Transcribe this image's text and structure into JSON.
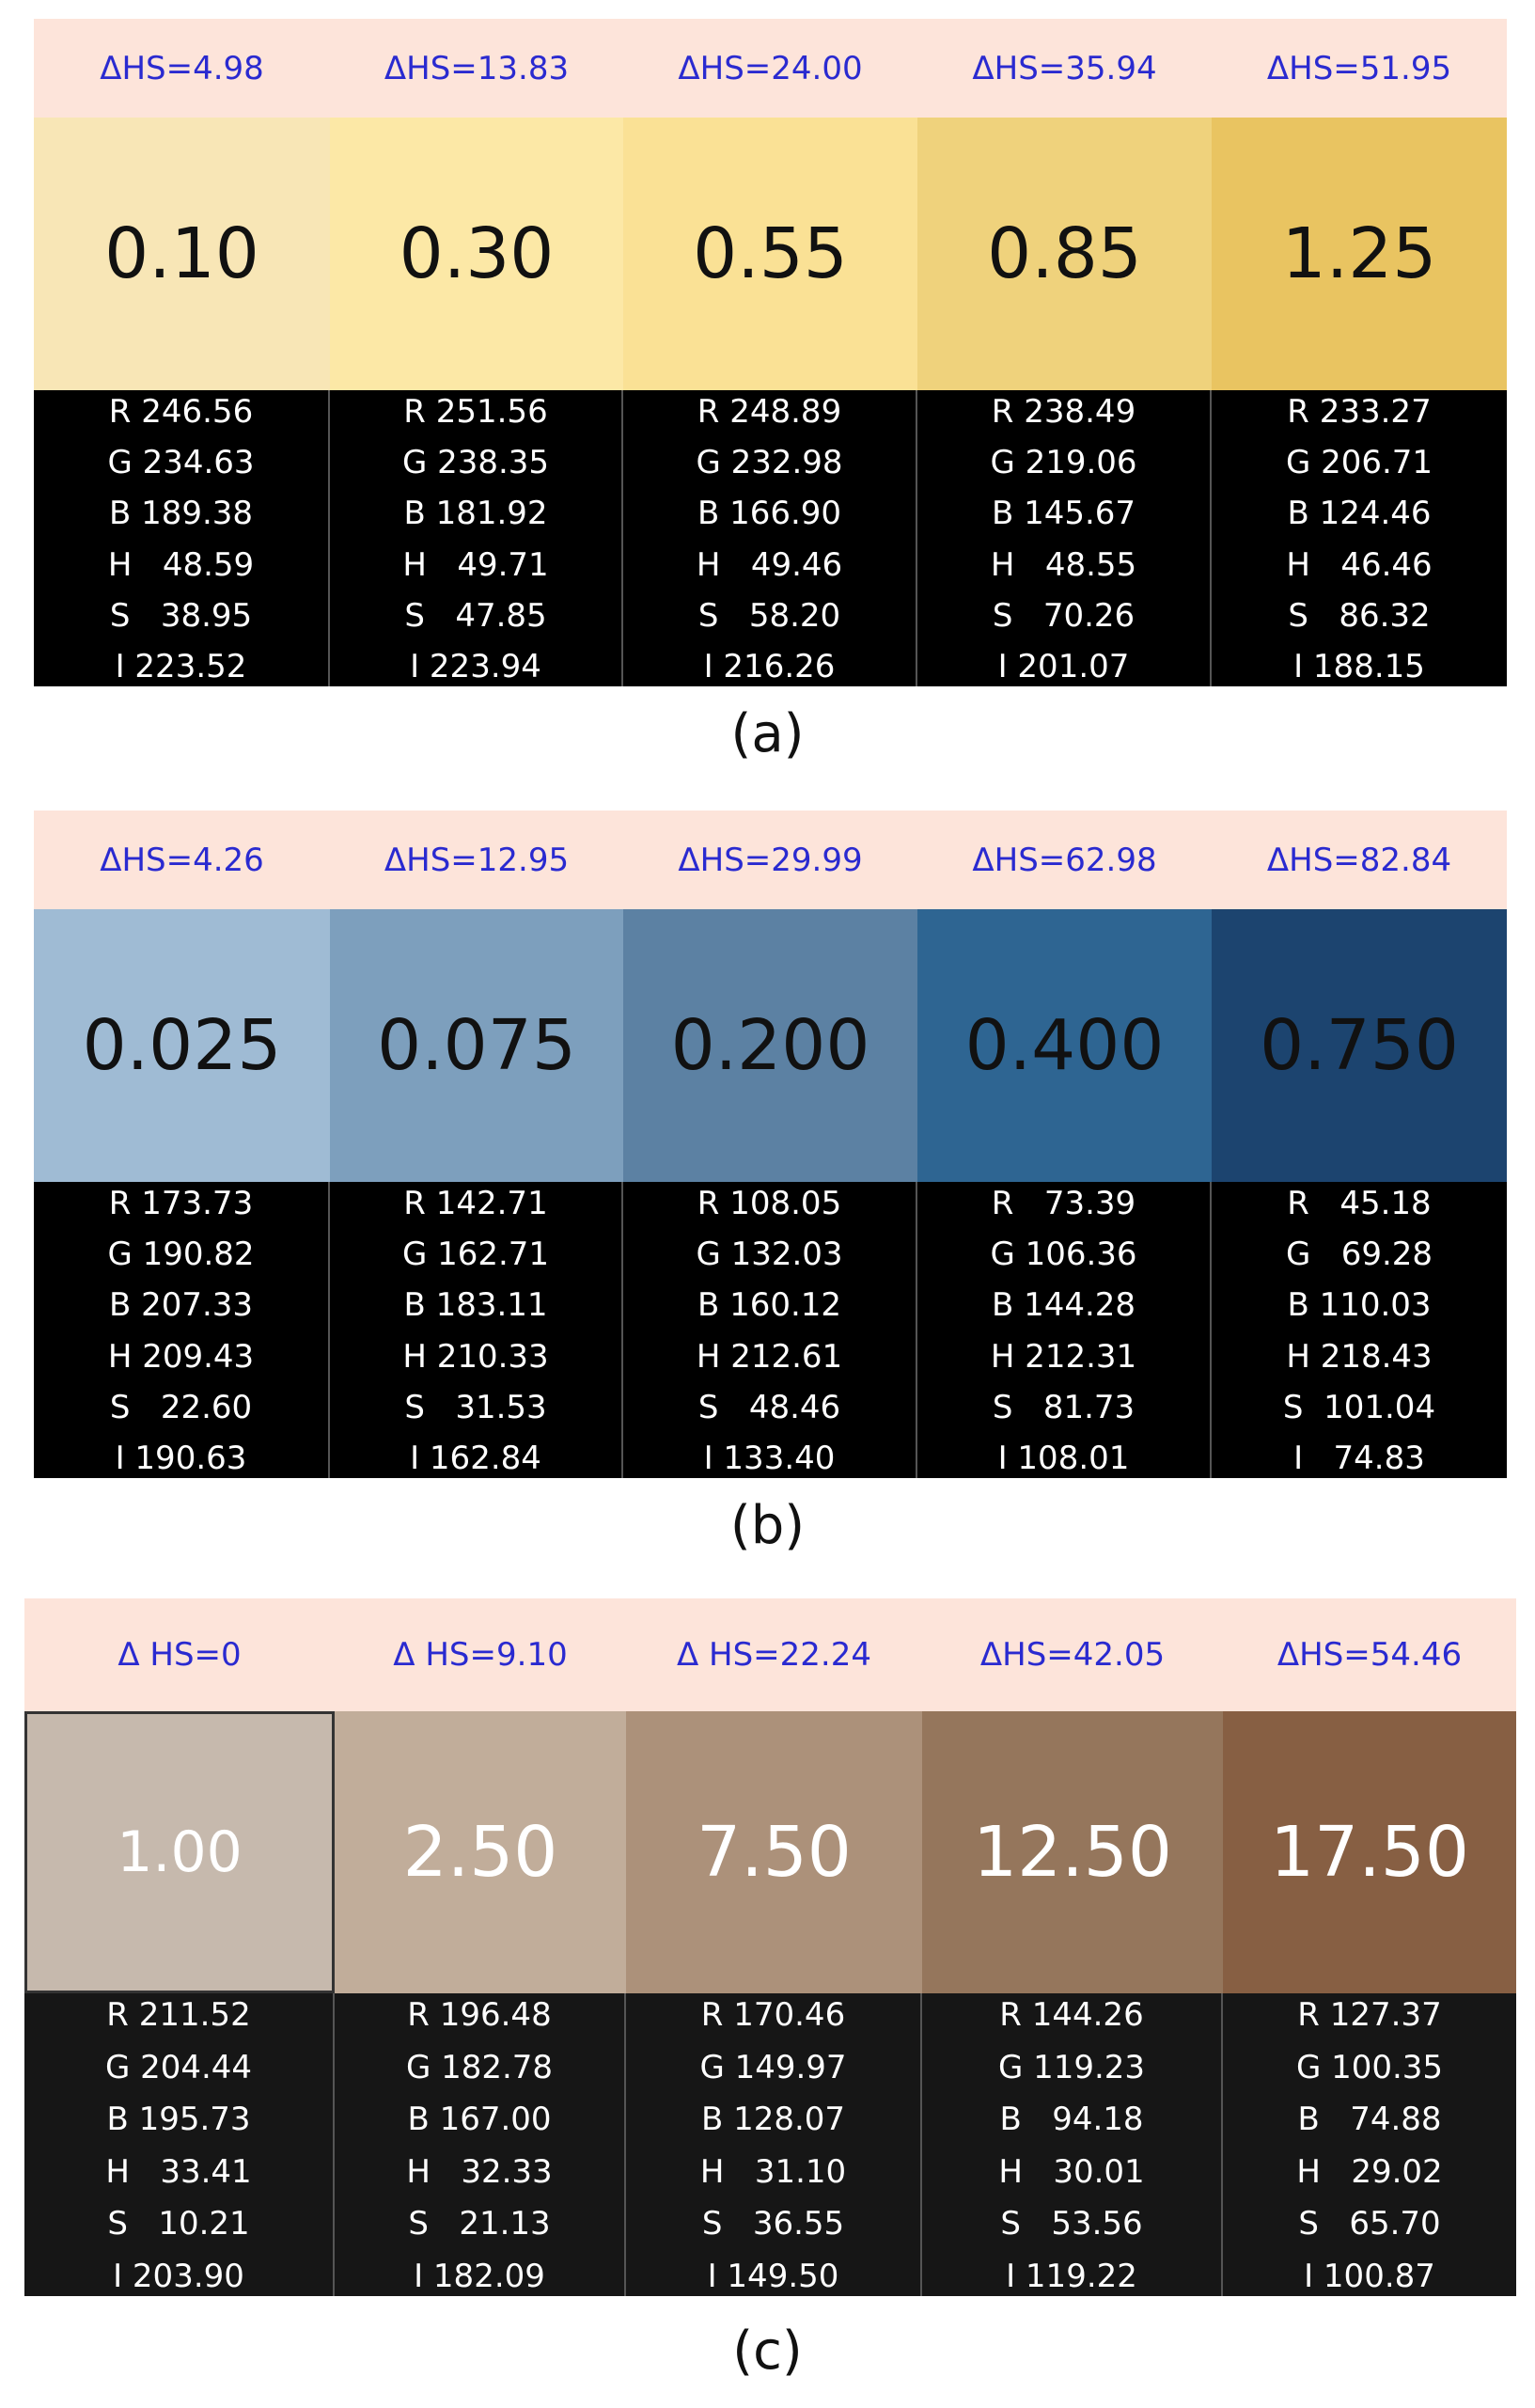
{
  "panels": [
    {
      "caption": "(a)",
      "hs": [
        "ΔHS=4.98",
        "ΔHS=13.83",
        "ΔHS=24.00",
        "ΔHS=35.94",
        "ΔHS=51.95"
      ],
      "swatches": [
        {
          "value": "0.10",
          "color": "#f8e6b6",
          "text_color": "#111111"
        },
        {
          "value": "0.30",
          "color": "#fce8a6",
          "text_color": "#111111"
        },
        {
          "value": "0.55",
          "color": "#fae195",
          "text_color": "#111111"
        },
        {
          "value": "0.85",
          "color": "#efd27c",
          "text_color": "#111111"
        },
        {
          "value": "1.25",
          "color": "#e9c461",
          "text_color": "#111111"
        }
      ],
      "data": [
        [
          "R 246.56",
          "G 234.63",
          "B 189.38",
          "H   48.59",
          "S   38.95",
          "I 223.52"
        ],
        [
          "R 251.56",
          "G 238.35",
          "B 181.92",
          "H   49.71",
          "S   47.85",
          "I 223.94"
        ],
        [
          "R 248.89",
          "G 232.98",
          "B 166.90",
          "H   49.46",
          "S   58.20",
          "I 216.26"
        ],
        [
          "R 238.49",
          "G 219.06",
          "B 145.67",
          "H   48.55",
          "S   70.26",
          "I 201.07"
        ],
        [
          "R 233.27",
          "G 206.71",
          "B 124.46",
          "H   46.46",
          "S   86.32",
          "I 188.15"
        ]
      ],
      "data_bg": "#000000"
    },
    {
      "caption": "(b)",
      "hs": [
        "ΔHS=4.26",
        "ΔHS=12.95",
        "ΔHS=29.99",
        "ΔHS=62.98",
        "ΔHS=82.84"
      ],
      "swatches": [
        {
          "value": "0.025",
          "color": "#9fbbd4",
          "text_color": "#111111"
        },
        {
          "value": "0.075",
          "color": "#7d9fbd",
          "text_color": "#111111"
        },
        {
          "value": "0.200",
          "color": "#5c81a3",
          "text_color": "#111111"
        },
        {
          "value": "0.400",
          "color": "#2e6592",
          "text_color": "#111111"
        },
        {
          "value": "0.750",
          "color": "#1c446f",
          "text_color": "#111111"
        }
      ],
      "data": [
        [
          "R 173.73",
          "G 190.82",
          "B 207.33",
          "H 209.43",
          "S   22.60",
          "I 190.63"
        ],
        [
          "R 142.71",
          "G 162.71",
          "B 183.11",
          "H 210.33",
          "S   31.53",
          "I 162.84"
        ],
        [
          "R 108.05",
          "G 132.03",
          "B 160.12",
          "H 212.61",
          "S   48.46",
          "I 133.40"
        ],
        [
          "R   73.39",
          "G 106.36",
          "B 144.28",
          "H 212.31",
          "S   81.73",
          "I 108.01"
        ],
        [
          "R   45.18",
          "G   69.28",
          "B 110.03",
          "H 218.43",
          "S  101.04",
          "I   74.83"
        ]
      ],
      "data_bg": "#000000"
    },
    {
      "caption": "(c)",
      "hs": [
        "Δ HS=0",
        "Δ HS=9.10",
        "Δ HS=22.24",
        "ΔHS=42.05",
        "ΔHS=54.46"
      ],
      "swatches": [
        {
          "value": "1.00",
          "color": "#c6b9ad",
          "text_color": "#ffffff"
        },
        {
          "value": "2.50",
          "color": "#c1ad9a",
          "text_color": "#ffffff"
        },
        {
          "value": "7.50",
          "color": "#ac917a",
          "text_color": "#ffffff"
        },
        {
          "value": "12.50",
          "color": "#95765c",
          "text_color": "#ffffff"
        },
        {
          "value": "17.50",
          "color": "#875f43",
          "text_color": "#ffffff"
        }
      ],
      "data": [
        [
          "R 211.52",
          "G 204.44",
          "B 195.73",
          "H   33.41",
          "S   10.21",
          "I 203.90"
        ],
        [
          "R 196.48",
          "G 182.78",
          "B 167.00",
          "H   32.33",
          "S   21.13",
          "I 182.09"
        ],
        [
          "R 170.46",
          "G 149.97",
          "B 128.07",
          "H   31.10",
          "S   36.55",
          "I 149.50"
        ],
        [
          "R 144.26",
          "G 119.23",
          "B   94.18",
          "H   30.01",
          "S   53.56",
          "I 119.22"
        ],
        [
          "R 127.37",
          "G 100.35",
          "B   74.88",
          "H   29.02",
          "S   65.70",
          "I 100.87"
        ]
      ],
      "data_bg": "#161616"
    }
  ]
}
